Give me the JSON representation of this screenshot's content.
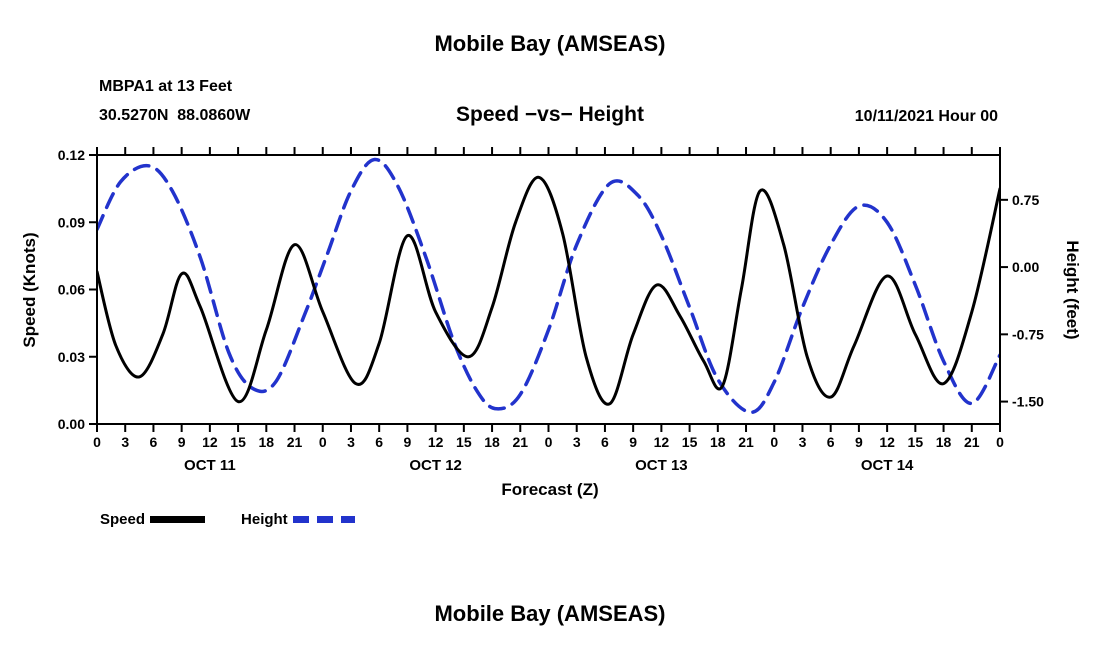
{
  "page": {
    "top_title": "Mobile Bay (AMSEAS)",
    "bottom_title": "Mobile Bay (AMSEAS)",
    "station_line1": "MBPA1 at 13 Feet",
    "station_line2": "30.5270N  88.0860W",
    "subtitle": "Speed −vs− Height",
    "datetime_label": "10/11/2021 Hour 00",
    "xaxis_title": "Forecast (Z)",
    "left_axis_title": "Speed (Knots)",
    "right_axis_title": "Height (feet)",
    "legend": [
      {
        "label": "Speed",
        "color": "#000000",
        "style": "solid"
      },
      {
        "label": "Height",
        "color": "#2233cc",
        "style": "dashed"
      }
    ]
  },
  "chart_data": {
    "type": "line",
    "title": "Mobile Bay (AMSEAS)",
    "subtitle": "Speed −vs− Height",
    "station": "MBPA1 at 13 Feet",
    "location": "30.5270N 88.0860W",
    "forecast_start": "10/11/2021 Hour 00",
    "xlabel": "Forecast (Z)",
    "grid": false,
    "legend_position": "bottom-left",
    "x_units": "hours since 10/11/2021 00Z",
    "x_range": [
      0,
      96
    ],
    "x_tick_hours": [
      0,
      3,
      6,
      9,
      12,
      15,
      18,
      21,
      24,
      27,
      30,
      33,
      36,
      39,
      42,
      45,
      48,
      51,
      54,
      57,
      60,
      63,
      66,
      69,
      72,
      75,
      78,
      81,
      84,
      87,
      90,
      93,
      96
    ],
    "x_tick_labels": [
      "0",
      "3",
      "6",
      "9",
      "12",
      "15",
      "18",
      "21",
      "0",
      "3",
      "6",
      "9",
      "12",
      "15",
      "18",
      "21",
      "0",
      "3",
      "6",
      "9",
      "12",
      "15",
      "18",
      "21",
      "0",
      "3",
      "6",
      "9",
      "12",
      "15",
      "18",
      "21",
      "0"
    ],
    "day_labels": [
      {
        "label": "OCT 11",
        "hour": 12
      },
      {
        "label": "OCT 12",
        "hour": 36
      },
      {
        "label": "OCT 13",
        "hour": 60
      },
      {
        "label": "OCT 14",
        "hour": 84
      }
    ],
    "left_axis": {
      "label": "Speed (Knots)",
      "range": [
        0,
        0.12
      ],
      "ticks": [
        0,
        0.03,
        0.06,
        0.09,
        0.12
      ],
      "tick_labels": [
        "0.00",
        "0.03",
        "0.06",
        "0.09",
        "0.12"
      ]
    },
    "right_axis": {
      "label": "Height (feet)",
      "range": [
        -1.75,
        1.25
      ],
      "ticks": [
        0.75,
        0,
        -0.75,
        -1.5
      ],
      "tick_labels": [
        "0.75",
        "0.00",
        "-0.75",
        "-1.50"
      ]
    },
    "series": [
      {
        "name": "Height",
        "axis": "right",
        "color": "#2233cc",
        "style": "dashed",
        "dash": "15 9",
        "width": 3.5,
        "x": [
          0,
          2.5,
          5.5,
          8,
          11,
          14,
          16.5,
          19,
          22,
          24.5,
          27,
          29.5,
          32,
          35,
          38,
          40.5,
          42.5,
          45,
          48,
          51,
          54.5,
          57.5,
          60,
          63,
          66,
          69.5,
          72,
          75,
          78,
          81,
          84,
          87,
          90,
          93,
          96
        ],
        "values": [
          0.42,
          0.95,
          1.13,
          0.85,
          0.1,
          -0.95,
          -1.35,
          -1.28,
          -0.55,
          0.15,
          0.85,
          1.2,
          0.9,
          0.1,
          -0.85,
          -1.4,
          -1.58,
          -1.42,
          -0.7,
          0.25,
          0.93,
          0.8,
          0.35,
          -0.45,
          -1.25,
          -1.62,
          -1.28,
          -0.45,
          0.25,
          0.68,
          0.5,
          -0.2,
          -1.05,
          -1.52,
          -0.98
        ]
      },
      {
        "name": "Speed",
        "axis": "left",
        "color": "#000000",
        "style": "solid",
        "dash": null,
        "width": 3,
        "x": [
          0,
          2,
          4.5,
          7,
          9,
          11,
          15,
          18,
          21,
          24,
          27.5,
          30,
          33,
          36,
          39.5,
          42,
          44.5,
          47,
          49.5,
          52,
          54.5,
          57,
          59.5,
          62,
          64.5,
          66.5,
          68.5,
          70.5,
          73,
          75.5,
          78,
          80.5,
          84,
          87,
          90,
          93,
          96
        ],
        "values": [
          0.068,
          0.035,
          0.021,
          0.04,
          0.067,
          0.052,
          0.01,
          0.042,
          0.08,
          0.05,
          0.018,
          0.036,
          0.084,
          0.05,
          0.03,
          0.052,
          0.09,
          0.11,
          0.085,
          0.03,
          0.009,
          0.04,
          0.062,
          0.048,
          0.028,
          0.017,
          0.06,
          0.104,
          0.08,
          0.03,
          0.012,
          0.035,
          0.066,
          0.04,
          0.018,
          0.05,
          0.105
        ]
      }
    ]
  }
}
